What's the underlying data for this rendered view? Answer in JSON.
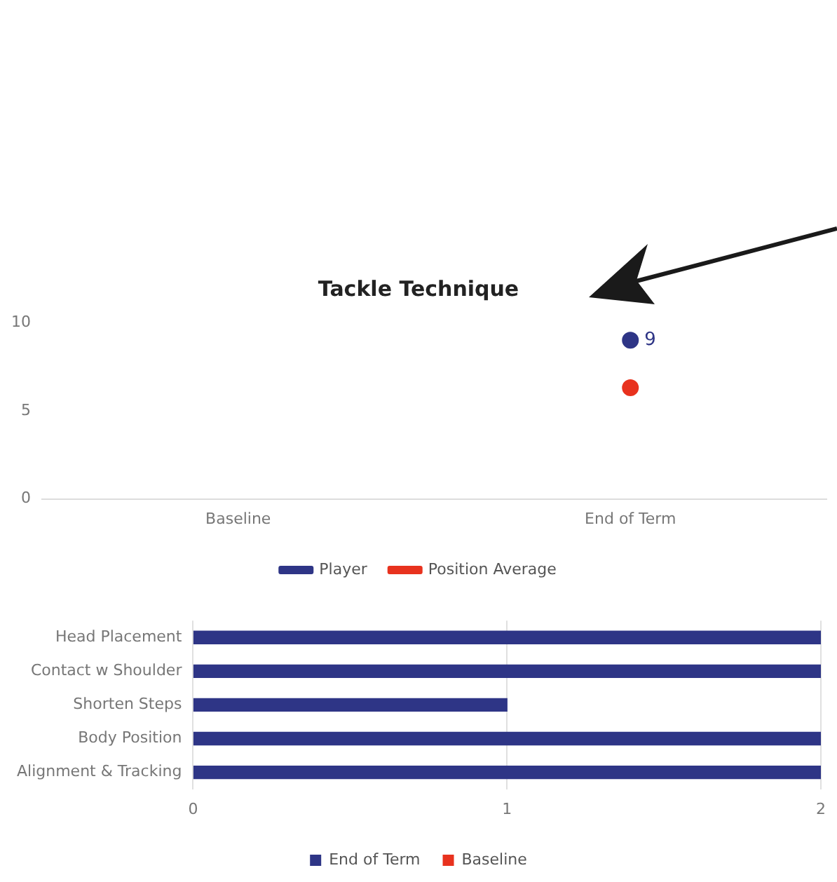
{
  "chart_data": [
    {
      "type": "line",
      "title": "Tackle Technique",
      "categories": [
        "Baseline",
        "End of Term"
      ],
      "ylim": [
        0,
        10
      ],
      "yticks": [
        0,
        5,
        10
      ],
      "grid": false,
      "legend": "bottom",
      "marker": "circle",
      "line_style": "solid",
      "series": [
        {
          "name": "Player",
          "color": "#2e3586",
          "values": [
            null,
            9
          ],
          "value_labels": [
            null,
            "9"
          ]
        },
        {
          "name": "Position Average",
          "color": "#e8321e",
          "values": [
            null,
            6.3
          ]
        }
      ]
    },
    {
      "type": "bar",
      "orientation": "horizontal",
      "categories": [
        "Head Placement",
        "Contact w Shoulder",
        "Shorten Steps",
        "Body Position",
        "Alignment & Tracking"
      ],
      "xlim": [
        0,
        2
      ],
      "xticks": [
        0,
        1,
        2
      ],
      "grid": "x",
      "legend": "bottom",
      "series": [
        {
          "name": "End of Term",
          "color": "#2e3586",
          "values": [
            2,
            2,
            1,
            2,
            2
          ]
        },
        {
          "name": "Baseline",
          "color": "#e8321e",
          "values": [
            null,
            null,
            null,
            null,
            null
          ]
        }
      ]
    }
  ]
}
